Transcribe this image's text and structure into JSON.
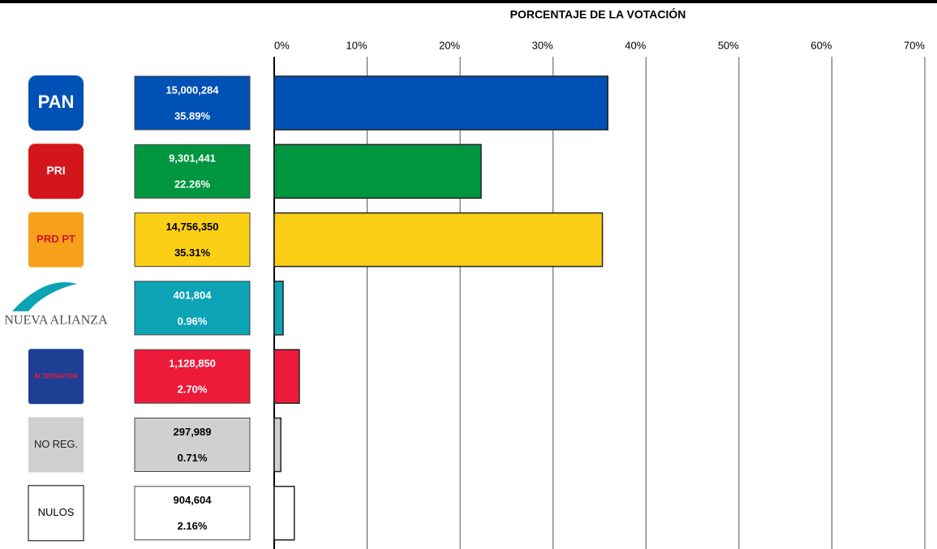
{
  "chart_data": {
    "type": "hbar",
    "x_label": "PORCENTAJE DE LA VOTACIÓN",
    "categories": [
      "PAN",
      "PRI",
      "PRD PT",
      "NUEVA ALIANZA",
      "ALTERNATIVA",
      "NO REG.",
      "NULOS"
    ],
    "values": [
      35.89,
      22.26,
      35.31,
      0.96,
      2.7,
      0.71,
      2.16
    ],
    "value_labels": [
      "35.89%",
      "22.26%",
      "35.31%",
      "0.96%",
      "2.70%",
      "0.71%",
      "2.16%"
    ],
    "vote_labels": [
      "15,000,284",
      "9,301,441",
      "14,756,350",
      "401,804",
      "1,128,850",
      "297,989",
      "904,604"
    ],
    "colors": [
      "#0051b5",
      "#009640",
      "#fbcf16",
      "#0ca3b5",
      "#ee1a3a",
      "#d0d0d0",
      "#ffffff"
    ],
    "label_text_colors": [
      "#ffffff",
      "#ffffff",
      "#000000",
      "#ffffff",
      "#ffffff",
      "#000000",
      "#000000"
    ],
    "xlim": [
      0,
      70
    ],
    "xticks": [
      {
        "value": 0,
        "label": "0%"
      },
      {
        "value": 10,
        "label": "10%"
      },
      {
        "value": 20,
        "label": "20%"
      },
      {
        "value": 30,
        "label": "30%"
      },
      {
        "value": 40,
        "label": "40%"
      },
      {
        "value": 50,
        "label": "50%"
      },
      {
        "value": 60,
        "label": "60%"
      },
      {
        "value": 70,
        "label": "70%"
      }
    ],
    "grid": true
  }
}
